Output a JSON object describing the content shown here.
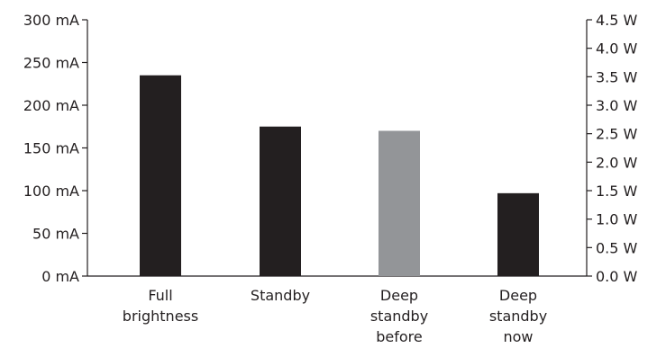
{
  "chart_data": {
    "type": "bar",
    "title": "",
    "xlabel": "",
    "ylabel": "",
    "categories": [
      [
        "Full",
        "brightness"
      ],
      [
        "Standby"
      ],
      [
        "Deep",
        "standby",
        "before"
      ],
      [
        "Deep",
        "standby",
        "now"
      ]
    ],
    "values": [
      235,
      175,
      170,
      97
    ],
    "bar_colors": [
      "#231f20",
      "#231f20",
      "#939598",
      "#231f20"
    ],
    "ylim": [
      0,
      300
    ],
    "y_ticks": [
      0,
      50,
      100,
      150,
      200,
      250,
      300
    ],
    "y_tick_labels": [
      "0 mA",
      "50 mA",
      "100 mA",
      "150 mA",
      "200 mA",
      "250 mA",
      "300 mA"
    ],
    "y2lim": [
      0,
      4.5
    ],
    "y2_ticks": [
      0,
      0.5,
      1,
      1.5,
      2,
      2.5,
      3,
      3.5,
      4,
      4.5
    ],
    "y2_tick_labels": [
      "0.0 W",
      "0.5 W",
      "1.0 W",
      "1.5 W",
      "2.0 W",
      "2.5 W",
      "3.0 W",
      "3.5 W",
      "4.0 W",
      "4.5 W"
    ],
    "grid": false,
    "legend": "none"
  }
}
